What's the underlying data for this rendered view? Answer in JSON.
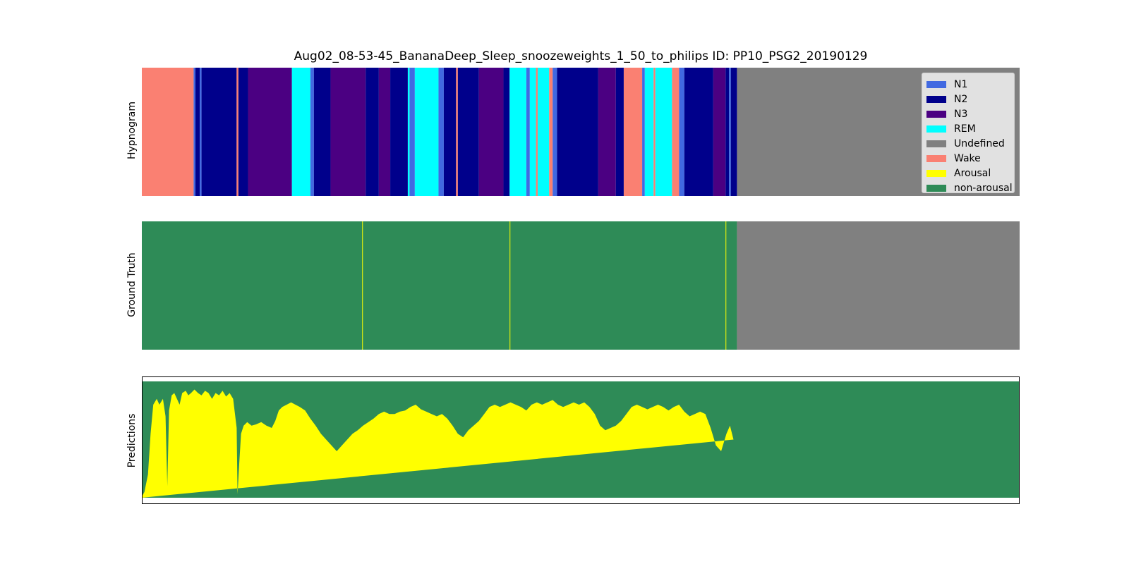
{
  "chart_data": {
    "type": "area",
    "title": "Aug02_08-53-45_BananaDeep_Sleep_snoozeweights_1_50_to_philips ID: PP10_PSG2_20190129",
    "colors": {
      "N1": "#4169e1",
      "N2": "#00008b",
      "N3": "#4b0082",
      "REM": "#00ffff",
      "Undefined": "#808080",
      "Wake": "#fa8072",
      "Arousal": "#ffff00",
      "non-arousal": "#2e8b57"
    },
    "legend": {
      "placement": "top-right",
      "entries": [
        "N1",
        "N2",
        "N3",
        "REM",
        "Undefined",
        "Wake",
        "Arousal",
        "non-arousal"
      ]
    },
    "panels": [
      {
        "ylabel": "Hypnogram",
        "stage_segments": [
          {
            "start": 0,
            "end": 0.059,
            "stage": "Wake"
          },
          {
            "start": 0.059,
            "end": 0.061,
            "stage": "N1"
          },
          {
            "start": 0.061,
            "end": 0.066,
            "stage": "N2"
          },
          {
            "start": 0.066,
            "end": 0.068,
            "stage": "N1"
          },
          {
            "start": 0.068,
            "end": 0.108,
            "stage": "N2"
          },
          {
            "start": 0.108,
            "end": 0.11,
            "stage": "Wake"
          },
          {
            "start": 0.11,
            "end": 0.121,
            "stage": "N2"
          },
          {
            "start": 0.121,
            "end": 0.171,
            "stage": "N3"
          },
          {
            "start": 0.171,
            "end": 0.192,
            "stage": "REM"
          },
          {
            "start": 0.192,
            "end": 0.196,
            "stage": "N1"
          },
          {
            "start": 0.196,
            "end": 0.215,
            "stage": "N2"
          },
          {
            "start": 0.215,
            "end": 0.255,
            "stage": "N3"
          },
          {
            "start": 0.255,
            "end": 0.27,
            "stage": "N2"
          },
          {
            "start": 0.27,
            "end": 0.283,
            "stage": "N3"
          },
          {
            "start": 0.283,
            "end": 0.303,
            "stage": "N2"
          },
          {
            "start": 0.303,
            "end": 0.305,
            "stage": "REM"
          },
          {
            "start": 0.305,
            "end": 0.311,
            "stage": "N1"
          },
          {
            "start": 0.311,
            "end": 0.338,
            "stage": "REM"
          },
          {
            "start": 0.338,
            "end": 0.344,
            "stage": "N1"
          },
          {
            "start": 0.344,
            "end": 0.358,
            "stage": "N2"
          },
          {
            "start": 0.358,
            "end": 0.36,
            "stage": "Wake"
          },
          {
            "start": 0.36,
            "end": 0.384,
            "stage": "N2"
          },
          {
            "start": 0.384,
            "end": 0.412,
            "stage": "N3"
          },
          {
            "start": 0.412,
            "end": 0.419,
            "stage": "N2"
          },
          {
            "start": 0.419,
            "end": 0.438,
            "stage": "REM"
          },
          {
            "start": 0.438,
            "end": 0.442,
            "stage": "N1"
          },
          {
            "start": 0.442,
            "end": 0.449,
            "stage": "REM"
          },
          {
            "start": 0.449,
            "end": 0.451,
            "stage": "Wake"
          },
          {
            "start": 0.451,
            "end": 0.464,
            "stage": "REM"
          },
          {
            "start": 0.464,
            "end": 0.468,
            "stage": "Wake"
          },
          {
            "start": 0.468,
            "end": 0.473,
            "stage": "N1"
          },
          {
            "start": 0.473,
            "end": 0.52,
            "stage": "N2"
          },
          {
            "start": 0.52,
            "end": 0.54,
            "stage": "N3"
          },
          {
            "start": 0.54,
            "end": 0.549,
            "stage": "N2"
          },
          {
            "start": 0.549,
            "end": 0.57,
            "stage": "Wake"
          },
          {
            "start": 0.57,
            "end": 0.573,
            "stage": "N1"
          },
          {
            "start": 0.573,
            "end": 0.583,
            "stage": "REM"
          },
          {
            "start": 0.583,
            "end": 0.585,
            "stage": "Wake"
          },
          {
            "start": 0.585,
            "end": 0.604,
            "stage": "REM"
          },
          {
            "start": 0.604,
            "end": 0.612,
            "stage": "Wake"
          },
          {
            "start": 0.612,
            "end": 0.618,
            "stage": "N1"
          },
          {
            "start": 0.618,
            "end": 0.651,
            "stage": "N2"
          },
          {
            "start": 0.651,
            "end": 0.665,
            "stage": "N3"
          },
          {
            "start": 0.665,
            "end": 0.669,
            "stage": "N2"
          },
          {
            "start": 0.669,
            "end": 0.671,
            "stage": "N1"
          },
          {
            "start": 0.671,
            "end": 0.678,
            "stage": "N2"
          },
          {
            "start": 0.678,
            "end": 1.0,
            "stage": "Undefined"
          }
        ]
      },
      {
        "ylabel": "Ground Truth",
        "arousal_events": [
          0.251,
          0.419,
          0.665
        ],
        "defined_until": 0.678
      },
      {
        "ylabel": "Predictions",
        "defined_until": 0.678,
        "x_fraction": [
          0,
          0.003,
          0.007,
          0.01,
          0.013,
          0.017,
          0.02,
          0.024,
          0.027,
          0.029,
          0.031,
          0.034,
          0.037,
          0.04,
          0.043,
          0.046,
          0.05,
          0.053,
          0.056,
          0.06,
          0.064,
          0.068,
          0.072,
          0.076,
          0.08,
          0.084,
          0.088,
          0.092,
          0.096,
          0.1,
          0.104,
          0.108,
          0.109,
          0.111,
          0.113,
          0.116,
          0.12,
          0.125,
          0.13,
          0.136,
          0.142,
          0.148,
          0.152,
          0.156,
          0.16,
          0.165,
          0.17,
          0.175,
          0.18,
          0.186,
          0.192,
          0.198,
          0.204,
          0.21,
          0.216,
          0.222,
          0.228,
          0.234,
          0.24,
          0.246,
          0.252,
          0.258,
          0.264,
          0.27,
          0.276,
          0.282,
          0.288,
          0.294,
          0.3,
          0.306,
          0.312,
          0.318,
          0.324,
          0.33,
          0.336,
          0.342,
          0.348,
          0.354,
          0.36,
          0.366,
          0.372,
          0.378,
          0.384,
          0.39,
          0.396,
          0.402,
          0.408,
          0.414,
          0.42,
          0.426,
          0.432,
          0.438,
          0.444,
          0.45,
          0.456,
          0.462,
          0.468,
          0.474,
          0.48,
          0.486,
          0.492,
          0.498,
          0.504,
          0.51,
          0.516,
          0.522,
          0.528,
          0.534,
          0.54,
          0.546,
          0.552,
          0.558,
          0.564,
          0.57,
          0.576,
          0.582,
          0.588,
          0.594,
          0.6,
          0.606,
          0.612,
          0.618,
          0.624,
          0.63,
          0.636,
          0.642,
          0.648,
          0.654,
          0.66,
          0.666,
          0.67,
          0.674,
          0.678
        ],
        "arousal_probability": [
          0.01,
          0.05,
          0.2,
          0.55,
          0.8,
          0.85,
          0.8,
          0.85,
          0.7,
          0.1,
          0.75,
          0.88,
          0.9,
          0.85,
          0.8,
          0.9,
          0.92,
          0.88,
          0.9,
          0.93,
          0.9,
          0.88,
          0.92,
          0.9,
          0.85,
          0.9,
          0.88,
          0.92,
          0.87,
          0.9,
          0.85,
          0.6,
          0.03,
          0.3,
          0.55,
          0.62,
          0.65,
          0.62,
          0.63,
          0.65,
          0.62,
          0.6,
          0.66,
          0.75,
          0.78,
          0.8,
          0.82,
          0.8,
          0.78,
          0.75,
          0.68,
          0.62,
          0.55,
          0.5,
          0.45,
          0.4,
          0.45,
          0.5,
          0.55,
          0.58,
          0.62,
          0.65,
          0.68,
          0.72,
          0.74,
          0.72,
          0.72,
          0.74,
          0.75,
          0.78,
          0.8,
          0.76,
          0.74,
          0.72,
          0.7,
          0.72,
          0.68,
          0.62,
          0.55,
          0.52,
          0.58,
          0.62,
          0.66,
          0.72,
          0.78,
          0.8,
          0.78,
          0.8,
          0.82,
          0.8,
          0.78,
          0.75,
          0.8,
          0.82,
          0.8,
          0.82,
          0.84,
          0.8,
          0.78,
          0.8,
          0.82,
          0.8,
          0.82,
          0.78,
          0.72,
          0.62,
          0.58,
          0.6,
          0.62,
          0.66,
          0.72,
          0.78,
          0.8,
          0.78,
          0.76,
          0.78,
          0.8,
          0.78,
          0.75,
          0.78,
          0.8,
          0.74,
          0.7,
          0.72,
          0.74,
          0.72,
          0.6,
          0.45,
          0.4,
          0.55,
          0.62,
          0.5
        ]
      }
    ]
  }
}
